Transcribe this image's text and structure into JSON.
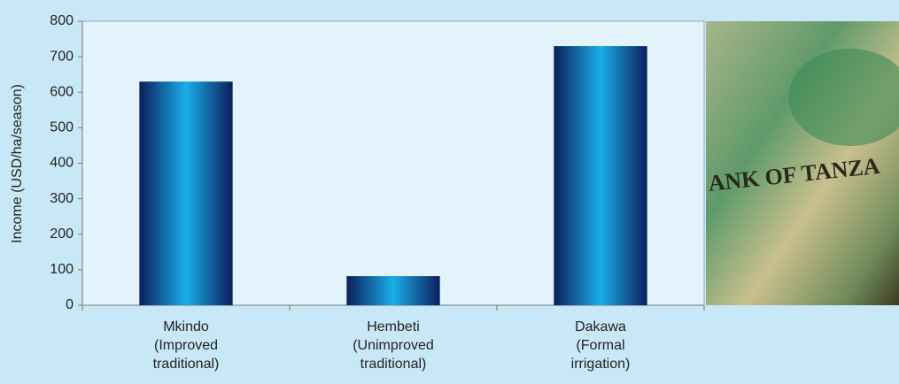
{
  "chart_data": {
    "type": "bar",
    "y_label": "Income (USD/ha/season)",
    "categories": [
      "Mkindo\n(Improved\ntraditional)",
      "Hembeti\n(Unimproved\ntraditional)",
      "Dakawa\n(Formal\nirrigation)"
    ],
    "values": [
      630,
      82,
      730
    ],
    "ylim": [
      0,
      800
    ],
    "yticks": [
      0,
      100,
      200,
      300,
      400,
      500,
      600,
      700,
      800
    ],
    "grid": false,
    "photo_text": "ANK OF TANZA"
  }
}
